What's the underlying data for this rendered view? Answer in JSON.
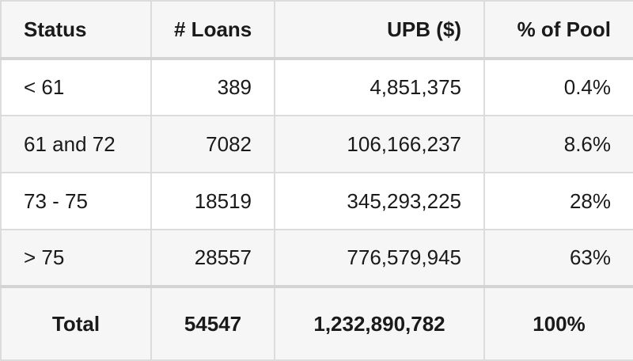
{
  "table": {
    "headers": [
      "Status",
      "# Loans",
      "UPB ($)",
      "% of Pool"
    ],
    "rows": [
      [
        "< 61",
        "389",
        "4,851,375",
        "0.4%"
      ],
      [
        "61 and 72",
        "7082",
        "106,166,237",
        "8.6%"
      ],
      [
        "73 - 75",
        "18519",
        "345,293,225",
        "28%"
      ],
      [
        "> 75",
        "28557",
        "776,579,945",
        "63%"
      ]
    ],
    "total": [
      "Total",
      "54547",
      "1,232,890,782",
      "100%"
    ]
  },
  "colors": {
    "border": "#dcdcdc",
    "header_bg": "#f6f6f6",
    "stripe_bg": "#f6f6f6",
    "text": "#1a1a1a"
  }
}
